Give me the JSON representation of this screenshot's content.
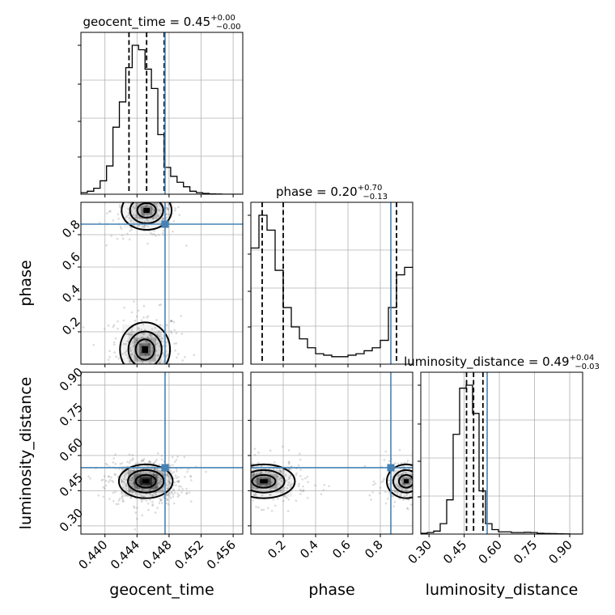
{
  "chart_data": {
    "type": "corner",
    "parameters": [
      "geocent_time",
      "phase",
      "luminosity_distance"
    ],
    "axis_labels": [
      "geocent_time",
      "phase",
      "luminosity_distance"
    ],
    "titles": [
      {
        "label": "geocent_time = 0.45",
        "plus": "+0.00",
        "minus": "−0.00"
      },
      {
        "label": "phase = 0.20",
        "plus": "+0.70",
        "minus": "−0.13"
      },
      {
        "label": "luminosity_distance = 0.49",
        "plus": "+0.04",
        "minus": "−0.03"
      }
    ],
    "ranges": [
      [
        0.437,
        0.4572
      ],
      [
        0.0,
        1.0
      ],
      [
        0.265,
        0.955
      ]
    ],
    "ticks": [
      [
        0.44,
        0.444,
        0.448,
        0.452,
        0.456
      ],
      [
        0.2,
        0.4,
        0.6,
        0.8
      ],
      [
        0.3,
        0.45,
        0.6,
        0.75,
        0.9
      ]
    ],
    "tick_labels": [
      [
        "0.440",
        "0.444",
        "0.448",
        "0.452",
        "0.456"
      ],
      [
        "0.2",
        "0.4",
        "0.6",
        "0.8"
      ],
      [
        "0.30",
        "0.45",
        "0.60",
        "0.75",
        "0.90"
      ]
    ],
    "truths": [
      0.4475,
      0.865,
      0.548
    ],
    "quantiles": [
      [
        0.443,
        0.4452,
        0.4474
      ],
      [
        0.07,
        0.2,
        0.9
      ],
      [
        0.46,
        0.49,
        0.53
      ]
    ],
    "histograms": [
      {
        "bin_edges_start": 0.437,
        "bin_width": 0.0008,
        "counts": [
          0.01,
          0.02,
          0.04,
          0.09,
          0.19,
          0.45,
          0.62,
          0.85,
          1.0,
          0.97,
          0.84,
          0.71,
          0.4,
          0.18,
          0.12,
          0.08,
          0.05,
          0.02,
          0.01,
          0.005,
          0.002,
          0.001,
          0.0,
          0.0,
          0.0
        ]
      },
      {
        "bin_edges_start": 0.0,
        "bin_width": 0.05,
        "counts": [
          0.78,
          1.0,
          0.9,
          0.63,
          0.38,
          0.25,
          0.17,
          0.11,
          0.07,
          0.06,
          0.05,
          0.05,
          0.06,
          0.07,
          0.09,
          0.11,
          0.16,
          0.38,
          0.6,
          0.65
        ]
      },
      {
        "bin_edges_start": 0.265,
        "bin_width": 0.0276,
        "counts": [
          0.005,
          0.01,
          0.02,
          0.07,
          0.23,
          0.67,
          0.98,
          1.0,
          0.81,
          0.29,
          0.07,
          0.03,
          0.015,
          0.015,
          0.01,
          0.01,
          0.012,
          0.01,
          0.005,
          0.004,
          0.003,
          0.002,
          0.001,
          0.0,
          0.0
        ]
      }
    ],
    "scatter_modes": [
      {
        "pair": [
          0,
          1
        ],
        "mean": [
          0.445,
          0.09
        ],
        "sd": [
          0.0013,
          0.07
        ],
        "weight": 0.55
      },
      {
        "pair": [
          0,
          1
        ],
        "mean": [
          0.4452,
          0.95
        ],
        "sd": [
          0.0013,
          0.05
        ],
        "weight": 0.45
      },
      {
        "pair": [
          0,
          2
        ],
        "mean": [
          0.4451,
          0.49
        ],
        "sd": [
          0.0014,
          0.03
        ],
        "weight": 1.0
      },
      {
        "pair": [
          1,
          2
        ],
        "mean": [
          0.08,
          0.49
        ],
        "sd": [
          0.08,
          0.03
        ],
        "weight": 0.58
      },
      {
        "pair": [
          1,
          2
        ],
        "mean": [
          0.96,
          0.49
        ],
        "sd": [
          0.05,
          0.03
        ],
        "weight": 0.42
      }
    ],
    "grid": true
  }
}
